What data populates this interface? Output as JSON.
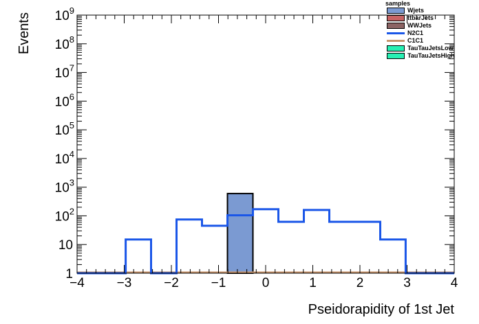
{
  "chart_data": {
    "type": "histogram",
    "xlabel": "Pseidorapidity of 1st Jet",
    "ylabel": "Events",
    "xlim": [
      -4,
      4
    ],
    "ylim": [
      1,
      1000000000
    ],
    "yscale": "log",
    "grid": false,
    "x_ticks": [
      {
        "value": -4,
        "label": "−4"
      },
      {
        "value": -3,
        "label": "−3"
      },
      {
        "value": -2,
        "label": "−2"
      },
      {
        "value": -1,
        "label": "−1"
      },
      {
        "value": 0,
        "label": "0"
      },
      {
        "value": 1,
        "label": "1"
      },
      {
        "value": 2,
        "label": "2"
      },
      {
        "value": 3,
        "label": "3"
      },
      {
        "value": 4,
        "label": "4"
      }
    ],
    "y_ticks": [
      {
        "value": 1,
        "base": "1",
        "exp": ""
      },
      {
        "value": 10,
        "base": "10",
        "exp": ""
      },
      {
        "value": 100,
        "base": "10",
        "exp": "2"
      },
      {
        "value": 1000,
        "base": "10",
        "exp": "3"
      },
      {
        "value": 10000,
        "base": "10",
        "exp": "4"
      },
      {
        "value": 100000,
        "base": "10",
        "exp": "5"
      },
      {
        "value": 1000000,
        "base": "10",
        "exp": "6"
      },
      {
        "value": 10000000,
        "base": "10",
        "exp": "7"
      },
      {
        "value": 100000000,
        "base": "10",
        "exp": "8"
      },
      {
        "value": 1000000000,
        "base": "10",
        "exp": "9"
      }
    ],
    "stacked_series": [
      {
        "name": "Wjets",
        "color": "#7b9ad2",
        "bins": [
          {
            "x0": -0.81,
            "x1": -0.27,
            "value": 600
          }
        ]
      }
    ],
    "line_series": [
      {
        "name": "N2C1",
        "color": "#1a56e8",
        "edges": [
          -4,
          -2.97,
          -2.43,
          -1.89,
          -1.35,
          -0.81,
          -0.27,
          0.27,
          0.81,
          1.35,
          2.43,
          2.97,
          4
        ],
        "values": [
          1,
          15,
          1,
          75,
          45,
          105,
          170,
          62,
          160,
          62,
          15,
          1
        ]
      }
    ],
    "legend": {
      "title": "samples",
      "position": "top-right",
      "entries": [
        {
          "label": "Wjets",
          "kind": "box",
          "color": "#7b9ad2"
        },
        {
          "label": "ttbarJets",
          "kind": "box",
          "color": "#c86464"
        },
        {
          "label": "WWJets",
          "kind": "box",
          "color": "#8c6464"
        },
        {
          "label": "N2C1",
          "kind": "line",
          "color": "#1a56e8"
        },
        {
          "label": "C1C1",
          "kind": "line",
          "color": "#c8966e"
        },
        {
          "label": "TauTauJetsLow",
          "kind": "box",
          "color": "#28f0b4"
        },
        {
          "label": "TauTauJetsHigh",
          "kind": "box",
          "color": "#28f0b4"
        }
      ]
    },
    "baseline_color": "#c8966e"
  }
}
